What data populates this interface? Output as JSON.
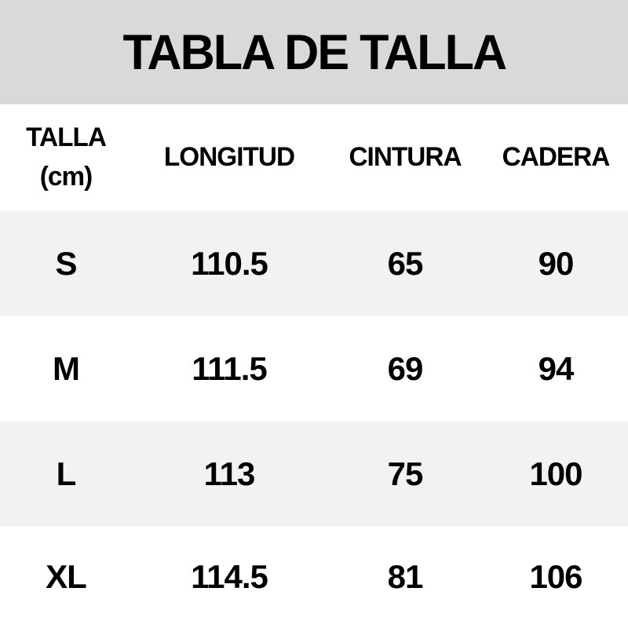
{
  "title": "TABLA DE TALLA",
  "chart_data": {
    "type": "table",
    "title": "TABLA DE TALLA",
    "unit_note": "(cm)",
    "columns": [
      "TALLA",
      "LONGITUD",
      "CINTURA",
      "CADERA"
    ],
    "rows": [
      [
        "S",
        "110.5",
        "65",
        "90"
      ],
      [
        "M",
        "111.5",
        "69",
        "94"
      ],
      [
        "L",
        "113",
        "75",
        "100"
      ],
      [
        "XL",
        "114.5",
        "81",
        "106"
      ]
    ],
    "layout_hints": {
      "row_striping": "alternating",
      "stripe_color": "#f2f2f2",
      "title_band_color": "#d9d9d9",
      "text_color": "#000000",
      "alignment": "center"
    }
  },
  "colors": {
    "title_band": "#d9d9d9",
    "row_alt": "#f2f2f2",
    "row_base": "#ffffff",
    "text": "#000000"
  }
}
